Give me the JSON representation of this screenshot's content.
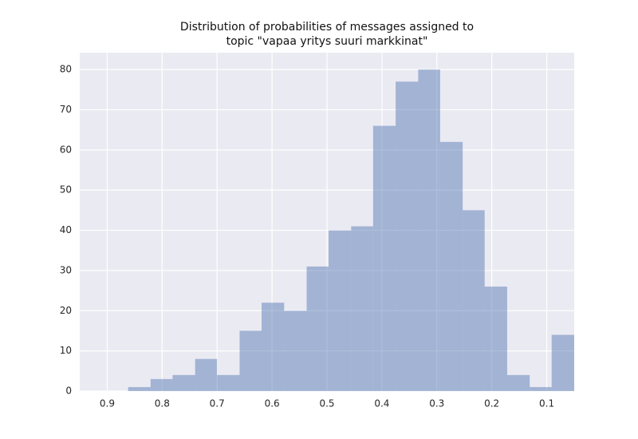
{
  "chart_data": {
    "type": "histogram",
    "title": "Distribution of probabilities of messages assigned to\ntopic \"vapaa yritys suuri markkinat\"",
    "bins": [
      0.862,
      0.821,
      0.781,
      0.74,
      0.7,
      0.659,
      0.619,
      0.578,
      0.537,
      0.497,
      0.456,
      0.416,
      0.375,
      0.334,
      0.294,
      0.253,
      0.213,
      0.172,
      0.131,
      0.091,
      0.05
    ],
    "values": [
      1,
      3,
      4,
      8,
      4,
      15,
      22,
      20,
      31,
      40,
      41,
      66,
      77,
      80,
      62,
      45,
      26,
      4,
      1,
      14
    ],
    "color": "#4c72b0",
    "xlim": [
      0.95,
      0.05
    ],
    "xticks": [
      0.9,
      0.8,
      0.7,
      0.6,
      0.5,
      0.4,
      0.3,
      0.2,
      0.1
    ],
    "ylim": [
      0,
      84.2
    ],
    "yticks": [
      0,
      10,
      20,
      30,
      40,
      50,
      60,
      70,
      80
    ],
    "grid": true
  }
}
